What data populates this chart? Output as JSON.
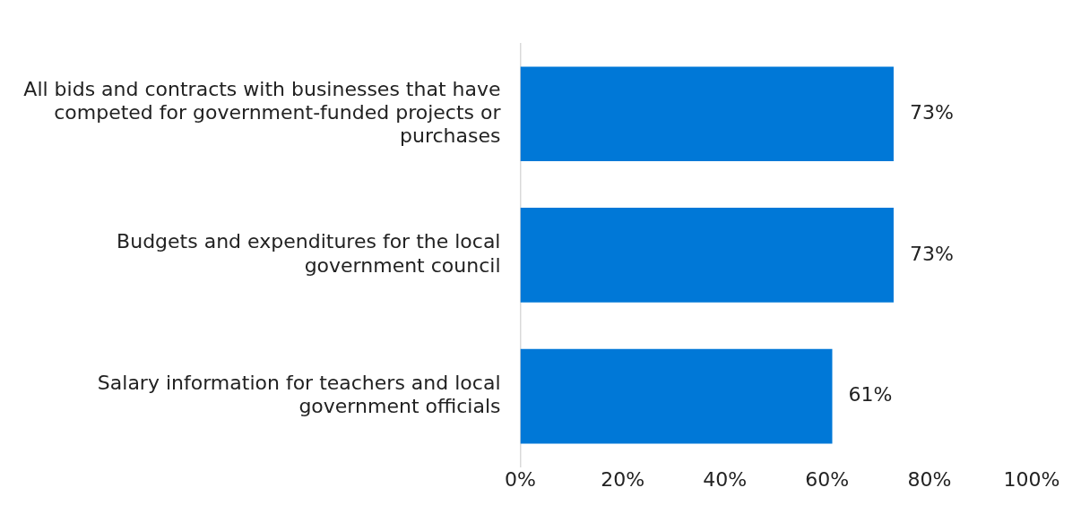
{
  "chart_data": {
    "type": "bar",
    "orientation": "horizontal",
    "categories": [
      "All bids and contracts with businesses that have competed for government-funded projects or purchases",
      "Budgets and expenditures for the local government council",
      "Salary information for teachers and local government officials"
    ],
    "values": [
      73,
      73,
      61
    ],
    "color": "#0078d7",
    "value_labels": [
      "73%",
      "73%",
      "61%"
    ],
    "xlim": [
      0,
      100
    ],
    "xticks": [
      {
        "value": 0,
        "label": "0%"
      },
      {
        "value": 20,
        "label": "20%"
      },
      {
        "value": 40,
        "label": "40%"
      },
      {
        "value": 60,
        "label": "60%"
      },
      {
        "value": 80,
        "label": "80%"
      },
      {
        "value": 100,
        "label": "100%"
      }
    ],
    "grid": false,
    "legend": false
  }
}
